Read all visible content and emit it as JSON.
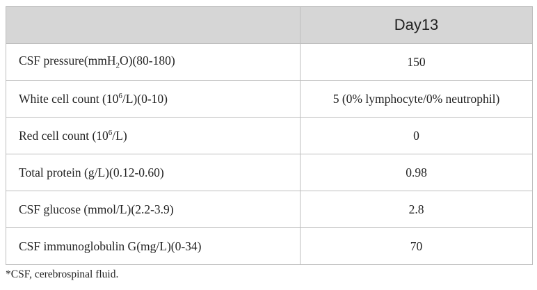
{
  "table": {
    "column_header": "Day13",
    "rows": [
      {
        "label": [
          "CSF pressure(mmH",
          {
            "sub": "2"
          },
          "O)(80-180)"
        ],
        "value": "150"
      },
      {
        "label": [
          "White cell count (10",
          {
            "sup": "6"
          },
          "/L)(0-10)"
        ],
        "value": "5 (0% lymphocyte/0% neutrophil)"
      },
      {
        "label": [
          "Red cell count (10",
          {
            "sup": "6"
          },
          "/L)"
        ],
        "value": "0"
      },
      {
        "label": [
          "Total protein (g/L)(0.12-0.60)"
        ],
        "value": "0.98"
      },
      {
        "label": [
          "CSF glucose (mmol/L)(2.2-3.9)"
        ],
        "value": "2.8"
      },
      {
        "label": [
          "CSF immunoglobulin G(mg/L)(0-34)"
        ],
        "value": "70"
      }
    ]
  },
  "footnote": "*CSF, cerebrospinal fluid."
}
